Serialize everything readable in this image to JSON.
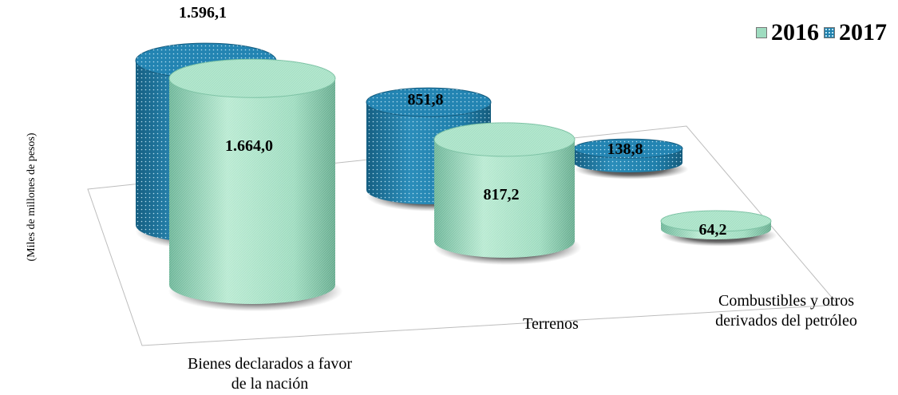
{
  "chart_data": {
    "type": "bar",
    "style": "3d-cylinder",
    "ylabel": "(Miles de millones de pesos)",
    "categories": [
      [
        "Bienes declarados a favor",
        "de la nación"
      ],
      [
        "Terrenos"
      ],
      [
        "Combustibles y otros",
        "derivados del petróleo"
      ]
    ],
    "series": [
      {
        "name": "2016",
        "values": [
          1664.0,
          817.2,
          64.2
        ],
        "labels": [
          "1.664,0",
          "817,2",
          "64,2"
        ],
        "color": "#9fdcc0"
      },
      {
        "name": "2017",
        "values": [
          1596.1,
          851.8,
          138.8
        ],
        "labels": [
          "1.596,1",
          "851,8",
          "138,8"
        ],
        "color": "#1f7fab"
      }
    ],
    "legend_position": "top-right",
    "grid": false
  }
}
